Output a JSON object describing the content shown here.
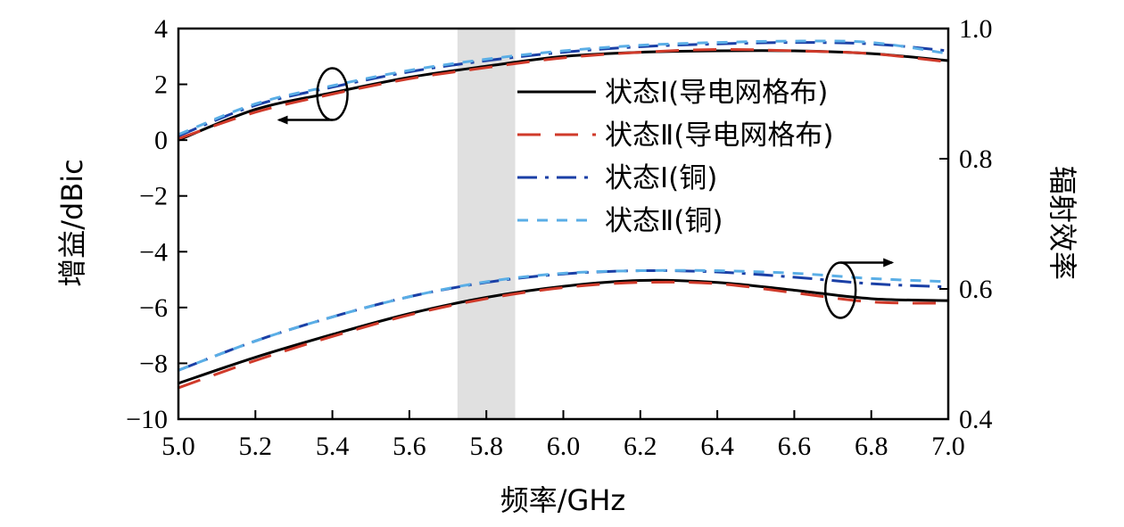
{
  "chart_data": {
    "type": "line",
    "xlabel": "频率/GHz",
    "ylabel_left": "增益/dBic",
    "ylabel_right": "辐射效率",
    "xlim": [
      5.0,
      7.0
    ],
    "ylim_left": [
      -10,
      4
    ],
    "ylim_right": [
      0.4,
      1.0
    ],
    "x_ticks": [
      "5.0",
      "5.2",
      "5.4",
      "5.6",
      "5.8",
      "6.0",
      "6.2",
      "6.4",
      "6.6",
      "6.8",
      "7.0"
    ],
    "y_left_ticks": [
      "4",
      "2",
      "0",
      "−2",
      "−4",
      "−6",
      "−8",
      "−10"
    ],
    "y_right_ticks": [
      "1.0",
      "0.8",
      "0.6",
      "0.4"
    ],
    "grid": false,
    "shaded_band": [
      5.725,
      5.875
    ],
    "shaded_color": "#e0e0e0",
    "legend_position": "top-right",
    "legend": [
      "状态Ⅰ(导电网格布)",
      "状态Ⅱ(导电网格布)",
      "状态Ⅰ(铜)",
      "状态Ⅱ(铜)"
    ],
    "series_styles": [
      {
        "color": "#000000",
        "dash": "solid"
      },
      {
        "color": "#d03a2a",
        "dash": "long-dash"
      },
      {
        "color": "#1a3fa6",
        "dash": "dash-dot"
      },
      {
        "color": "#5aaee6",
        "dash": "short-dash"
      }
    ],
    "x": [
      5.0,
      5.2,
      5.4,
      5.6,
      5.8,
      6.0,
      6.2,
      6.4,
      6.6,
      6.8,
      7.0
    ],
    "gain_series": [
      [
        0.0,
        1.1,
        1.7,
        2.25,
        2.65,
        3.0,
        3.15,
        3.2,
        3.2,
        3.1,
        2.85
      ],
      [
        0.05,
        1.0,
        1.65,
        2.2,
        2.6,
        2.95,
        3.15,
        3.25,
        3.2,
        3.1,
        2.8
      ],
      [
        0.15,
        1.25,
        1.9,
        2.45,
        2.85,
        3.15,
        3.35,
        3.45,
        3.5,
        3.45,
        3.2
      ],
      [
        0.2,
        1.3,
        1.95,
        2.5,
        2.9,
        3.2,
        3.4,
        3.5,
        3.55,
        3.5,
        3.1
      ]
    ],
    "efficiency_series": [
      [
        0.455,
        0.495,
        0.53,
        0.562,
        0.587,
        0.604,
        0.613,
        0.61,
        0.598,
        0.585,
        0.582
      ],
      [
        0.448,
        0.49,
        0.527,
        0.56,
        0.585,
        0.602,
        0.61,
        0.608,
        0.594,
        0.58,
        0.578
      ],
      [
        0.475,
        0.52,
        0.557,
        0.588,
        0.61,
        0.623,
        0.628,
        0.626,
        0.618,
        0.608,
        0.603
      ],
      [
        0.475,
        0.52,
        0.557,
        0.588,
        0.611,
        0.624,
        0.628,
        0.628,
        0.624,
        0.616,
        0.611
      ]
    ]
  }
}
